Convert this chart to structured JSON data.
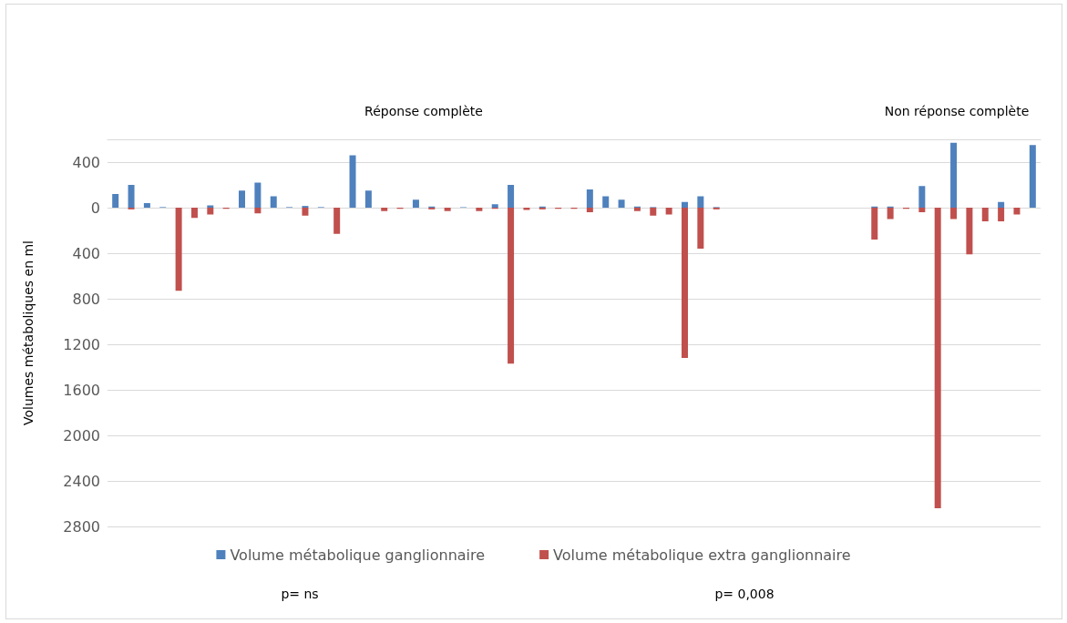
{
  "chart_data": {
    "type": "bar",
    "ylabel": "Volumes métaboliques en ml",
    "categories": [
      null,
      null,
      null,
      null,
      null,
      null,
      null,
      null,
      null,
      null,
      null,
      null,
      null,
      null,
      null,
      null,
      null,
      null,
      null,
      null,
      null,
      null,
      null,
      null,
      null,
      null,
      null,
      null,
      null,
      null,
      null,
      null,
      null,
      null,
      null,
      null,
      null,
      null,
      null,
      null,
      null,
      null,
      null,
      null,
      null,
      null,
      null,
      null,
      null,
      null,
      null,
      null,
      null,
      null,
      null,
      null,
      null,
      null,
      null
    ],
    "series": [
      {
        "name": "Volume métabolique ganglionnaire",
        "color": "#4f81bd",
        "values": [
          120,
          200,
          40,
          5,
          null,
          null,
          20,
          null,
          150,
          220,
          100,
          5,
          15,
          5,
          null,
          460,
          150,
          null,
          null,
          70,
          10,
          null,
          5,
          null,
          30,
          200,
          null,
          10,
          null,
          null,
          160,
          100,
          70,
          10,
          5,
          null,
          50,
          100,
          5,
          null,
          null,
          null,
          null,
          null,
          null,
          null,
          null,
          null,
          10,
          10,
          null,
          190,
          null,
          570,
          null,
          null,
          50,
          null,
          550
        ]
      },
      {
        "name": "Volume métabolique extra ganglionnaire",
        "color": "#c0504d",
        "values": [
          null,
          -15,
          null,
          null,
          -730,
          -90,
          -60,
          -10,
          null,
          -50,
          null,
          null,
          -70,
          null,
          -230,
          null,
          null,
          -30,
          -10,
          null,
          -15,
          -30,
          null,
          -30,
          -10,
          -1370,
          -20,
          -15,
          -10,
          -10,
          -40,
          null,
          null,
          -30,
          -70,
          -60,
          -1320,
          -360,
          -15,
          null,
          null,
          null,
          null,
          null,
          null,
          null,
          null,
          null,
          -280,
          -100,
          -10,
          -40,
          -2640,
          -100,
          -410,
          -120,
          -120,
          -60,
          null
        ]
      }
    ],
    "ylim": [
      -2800,
      600
    ],
    "yticks": [
      400,
      0,
      {
        "value": -400,
        "label": "400"
      },
      {
        "value": -800,
        "label": "800"
      },
      {
        "value": -1200,
        "label": "1200"
      },
      {
        "value": -1600,
        "label": "1600"
      },
      {
        "value": -2000,
        "label": "2000"
      },
      {
        "value": -2400,
        "label": "2400"
      },
      {
        "value": -2800,
        "label": "2800"
      }
    ],
    "grid": "y",
    "legend": "bottom",
    "annotations": [
      "Réponse complète",
      "Non réponse complète",
      "p= ns",
      "p= 0,008"
    ]
  }
}
